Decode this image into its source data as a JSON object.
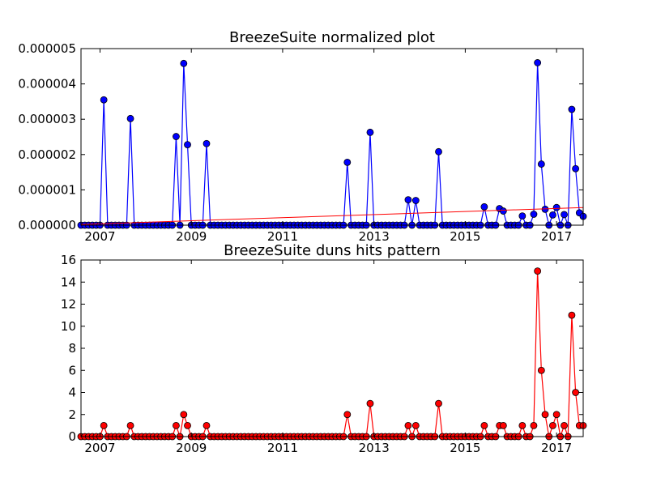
{
  "chart_data": [
    {
      "type": "line",
      "title": "BreezeSuite normalized plot",
      "xlabel": "",
      "ylabel": "",
      "x_ticks": [
        "2007",
        "2009",
        "2011",
        "2013",
        "2015",
        "2017"
      ],
      "y_ticks": [
        "0.000000",
        "0.000001",
        "0.000002",
        "0.000003",
        "0.000004",
        "0.000005"
      ],
      "xlim": [
        "2006-08",
        "2017-08"
      ],
      "ylim": [
        0,
        5e-06
      ],
      "grid": false,
      "legend": "none",
      "series": [
        {
          "color": "#0000ff",
          "marker": "circle",
          "points": [
            [
              "2007-02",
              3.55e-06
            ],
            [
              "2007-09",
              3.02e-06
            ],
            [
              "2008-09",
              2.51e-06
            ],
            [
              "2008-11",
              4.58e-06
            ],
            [
              "2008-12",
              2.28e-06
            ],
            [
              "2009-05",
              2.31e-06
            ],
            [
              "2012-06",
              1.78e-06
            ],
            [
              "2012-12",
              2.63e-06
            ],
            [
              "2013-10",
              7.2e-07
            ],
            [
              "2013-12",
              7e-07
            ],
            [
              "2014-06",
              2.08e-06
            ],
            [
              "2015-06",
              5.2e-07
            ],
            [
              "2015-10",
              4.7e-07
            ],
            [
              "2015-11",
              4e-07
            ],
            [
              "2016-04",
              2.6e-07
            ],
            [
              "2016-07",
              3.1e-07
            ],
            [
              "2016-08",
              4.6e-06
            ],
            [
              "2016-09",
              1.73e-06
            ],
            [
              "2016-10",
              4.5e-07
            ],
            [
              "2016-12",
              2.9e-07
            ],
            [
              "2017-01",
              5e-07
            ],
            [
              "2017-03",
              3e-07
            ],
            [
              "2017-05",
              3.28e-06
            ],
            [
              "2017-06",
              1.6e-06
            ],
            [
              "2017-07",
              3.5e-07
            ],
            [
              "2017-08",
              2.5e-07
            ]
          ],
          "baseline_value": 0
        },
        {
          "type": "trend-line",
          "color": "#ff0000",
          "points": [
            [
              "2006-08",
              2e-08
            ],
            [
              "2017-08",
              5e-07
            ]
          ]
        }
      ]
    },
    {
      "type": "line",
      "title": "BreezeSuite duns hits pattern",
      "xlabel": "",
      "ylabel": "",
      "x_ticks": [
        "2007",
        "2009",
        "2011",
        "2013",
        "2015",
        "2017"
      ],
      "y_ticks": [
        "0",
        "2",
        "4",
        "6",
        "8",
        "10",
        "12",
        "14",
        "16"
      ],
      "xlim": [
        "2006-08",
        "2017-08"
      ],
      "ylim": [
        0,
        16
      ],
      "grid": false,
      "legend": "none",
      "series": [
        {
          "color": "#ff0000",
          "marker": "circle",
          "points": [
            [
              "2007-02",
              1
            ],
            [
              "2007-09",
              1
            ],
            [
              "2008-09",
              1
            ],
            [
              "2008-11",
              2
            ],
            [
              "2008-12",
              1
            ],
            [
              "2009-05",
              1
            ],
            [
              "2012-06",
              2
            ],
            [
              "2012-12",
              3
            ],
            [
              "2013-10",
              1
            ],
            [
              "2013-12",
              1
            ],
            [
              "2014-06",
              3
            ],
            [
              "2015-06",
              1
            ],
            [
              "2015-10",
              1
            ],
            [
              "2015-11",
              1
            ],
            [
              "2016-04",
              1
            ],
            [
              "2016-07",
              1
            ],
            [
              "2016-08",
              15
            ],
            [
              "2016-09",
              6
            ],
            [
              "2016-10",
              2
            ],
            [
              "2016-12",
              1
            ],
            [
              "2017-01",
              2
            ],
            [
              "2017-03",
              1
            ],
            [
              "2017-05",
              11
            ],
            [
              "2017-06",
              4
            ],
            [
              "2017-07",
              1
            ],
            [
              "2017-08",
              1
            ]
          ],
          "baseline_value": 0
        }
      ]
    }
  ]
}
